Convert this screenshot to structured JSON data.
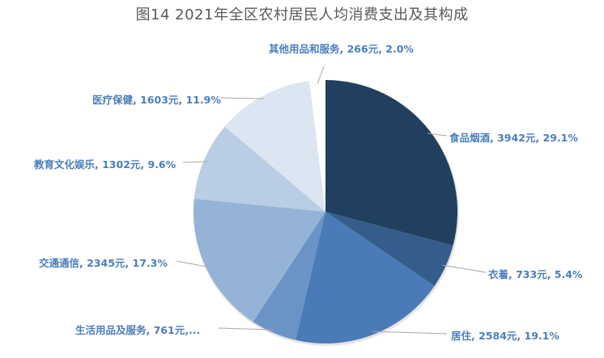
{
  "chart_data": {
    "type": "pie",
    "title": "图14  2021年全区农村居民人均消费支出及其构成",
    "unit": "元",
    "start_angle": "12 o'clock, clockwise",
    "categories": [
      "食品烟酒",
      "衣着",
      "居住",
      "生活用品及服务",
      "交通通信",
      "教育文化娱乐",
      "医疗保健",
      "其他用品和服务"
    ],
    "values": [
      3942,
      733,
      2584,
      761,
      2345,
      1302,
      1603,
      266
    ],
    "percentages": [
      29.1,
      5.4,
      19.1,
      5.6,
      17.3,
      9.6,
      11.9,
      2.0
    ],
    "colors": [
      "#21405f",
      "#355d8c",
      "#4a7ab7",
      "#6a94c6",
      "#95b3d7",
      "#b9cde5",
      "#dce6f2",
      "#ffffff"
    ],
    "labels": [
      "食品烟酒, 3942元, 29.1%",
      "衣着, 733元, 5.4%",
      "居住, 2584元, 19.1%",
      "生活用品及服务, 761元,...",
      "交通通信, 2345元, 17.3%",
      "教育文化娱乐, 1302元, 9.6%",
      "医疗保健, 1603元, 11.9%",
      "其他用品和服务, 266元, 2.0%"
    ],
    "legend": "none (data labels with leader lines)"
  }
}
